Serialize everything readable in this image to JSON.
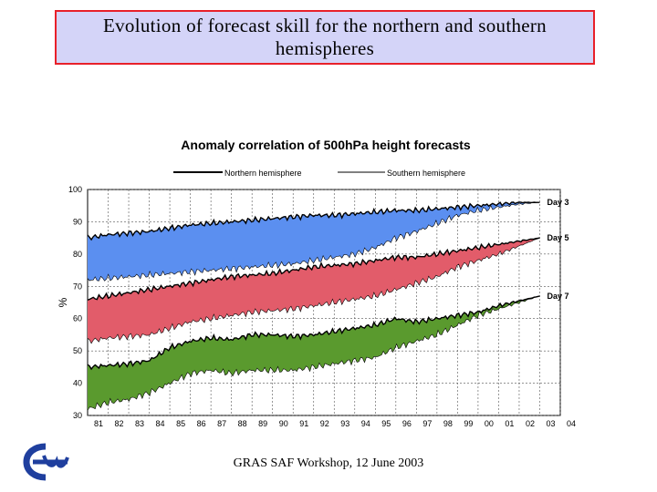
{
  "slide": {
    "title": "Evolution of forecast skill for the northern and southern hemispheres",
    "footer": "GRAS SAF Workshop, 12 June 2003",
    "title_bg": "#d4d4f8",
    "title_border": "#e8202a"
  },
  "chart_data": {
    "type": "area",
    "title": "Anomaly correlation of 500hPa height forecasts",
    "ylabel": "%",
    "xlabel": "",
    "ylim": [
      30,
      100
    ],
    "yticks": [
      30,
      40,
      50,
      60,
      70,
      80,
      90,
      100
    ],
    "xlim": [
      1981,
      2004
    ],
    "xticks": [
      "81",
      "82",
      "83",
      "84",
      "85",
      "86",
      "87",
      "88",
      "89",
      "90",
      "91",
      "92",
      "93",
      "94",
      "95",
      "96",
      "97",
      "98",
      "99",
      "00",
      "01",
      "02",
      "03",
      "04"
    ],
    "legend": [
      {
        "label": "Northern hemisphere",
        "line": "thick"
      },
      {
        "label": "Southern hemisphere",
        "line": "thin"
      }
    ],
    "legend_position": "top",
    "grid": true,
    "series": [
      {
        "name": "Day 3",
        "color": "#5b8ff0",
        "x": [
          1981,
          1982,
          1983,
          1984,
          1985,
          1986,
          1987,
          1988,
          1989,
          1990,
          1991,
          1992,
          1993,
          1994,
          1995,
          1996,
          1997,
          1998,
          1999,
          2000,
          2001,
          2002,
          2003
        ],
        "upper": [
          85,
          86,
          86.5,
          87,
          88,
          89,
          89.5,
          90,
          90.5,
          91,
          91.5,
          92,
          92,
          92.5,
          93,
          93.5,
          93.5,
          94,
          94.5,
          95,
          95.5,
          96,
          96
        ],
        "lower": [
          72,
          72.5,
          73,
          73.5,
          74,
          74.5,
          75,
          75.5,
          76,
          76.5,
          77,
          78,
          79,
          80,
          82,
          85,
          87,
          89.5,
          92,
          93.5,
          94.5,
          95.5,
          96
        ]
      },
      {
        "name": "Day 5",
        "color": "#e25c6a",
        "x": [
          1981,
          1982,
          1983,
          1984,
          1985,
          1986,
          1987,
          1988,
          1989,
          1990,
          1991,
          1992,
          1993,
          1994,
          1995,
          1996,
          1997,
          1998,
          1999,
          2000,
          2001,
          2002,
          2003
        ],
        "upper": [
          66,
          67,
          68,
          69,
          70,
          71,
          72,
          73,
          73.5,
          74,
          75,
          76,
          76.5,
          77,
          78,
          79,
          79,
          80,
          81,
          82,
          83,
          84,
          85
        ],
        "lower": [
          53,
          54,
          54.5,
          55,
          57,
          59,
          60,
          61,
          62,
          62.5,
          63,
          64,
          65,
          66,
          67,
          69,
          71,
          73,
          76,
          78,
          80,
          82.5,
          85
        ]
      },
      {
        "name": "Day 7",
        "color": "#5a9a2e",
        "x": [
          1981,
          1982,
          1983,
          1984,
          1985,
          1986,
          1987,
          1988,
          1989,
          1990,
          1991,
          1992,
          1993,
          1994,
          1995,
          1996,
          1997,
          1998,
          1999,
          2000,
          2001,
          2002,
          2003
        ],
        "upper": [
          45,
          45.5,
          46,
          47,
          51,
          53,
          54,
          53.5,
          55,
          55,
          54.5,
          55,
          56,
          57,
          58,
          60,
          59,
          60,
          61,
          62,
          64,
          65.5,
          67
        ],
        "lower": [
          32,
          34,
          35,
          37,
          40,
          43,
          44,
          43,
          44,
          44,
          44,
          45,
          46,
          47,
          48,
          51,
          53,
          55,
          58,
          61,
          63,
          65,
          67
        ]
      }
    ],
    "annotations": [
      "Day 3",
      "Day 5",
      "Day 7"
    ]
  }
}
